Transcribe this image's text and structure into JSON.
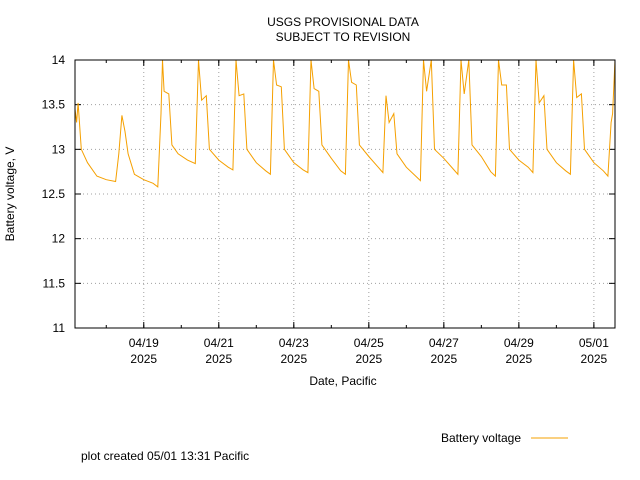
{
  "chart_data": {
    "type": "line",
    "title": [
      "USGS PROVISIONAL DATA",
      "SUBJECT TO REVISION"
    ],
    "xlabel": "Date, Pacific",
    "ylabel": "Battery voltage, V",
    "ylim": [
      11,
      14
    ],
    "xlim": [
      "2025-04-17T04:00",
      "2025-05-01T13:31"
    ],
    "y_ticks": [
      {
        "value": 11,
        "label": "11"
      },
      {
        "value": 11.5,
        "label": "11.5"
      },
      {
        "value": 12,
        "label": "12"
      },
      {
        "value": 12.5,
        "label": "12.5"
      },
      {
        "value": 13,
        "label": "13"
      },
      {
        "value": 13.5,
        "label": "13.5"
      },
      {
        "value": 14,
        "label": "14"
      }
    ],
    "x_major_ticks": [
      {
        "date": "2025-04-19",
        "label": "04/19",
        "year": "2025"
      },
      {
        "date": "2025-04-21",
        "label": "04/21",
        "year": "2025"
      },
      {
        "date": "2025-04-23",
        "label": "04/23",
        "year": "2025"
      },
      {
        "date": "2025-04-25",
        "label": "04/25",
        "year": "2025"
      },
      {
        "date": "2025-04-27",
        "label": "04/27",
        "year": "2025"
      },
      {
        "date": "2025-04-29",
        "label": "04/29",
        "year": "2025"
      },
      {
        "date": "2025-05-01",
        "label": "05/01",
        "year": "2025"
      }
    ],
    "grid": true,
    "legend": "bottom-right",
    "series": [
      {
        "name": "Battery voltage",
        "color": "#f5a000",
        "points": [
          [
            "2025-04-17T04:00",
            13.45
          ],
          [
            "2025-04-17T05:00",
            13.3
          ],
          [
            "2025-04-17T06:00",
            13.52
          ],
          [
            "2025-04-17T08:00",
            13.0
          ],
          [
            "2025-04-17T12:00",
            12.85
          ],
          [
            "2025-04-17T18:00",
            12.7
          ],
          [
            "2025-04-18T00:00",
            12.66
          ],
          [
            "2025-04-18T06:00",
            12.64
          ],
          [
            "2025-04-18T08:00",
            12.95
          ],
          [
            "2025-04-18T10:00",
            13.38
          ],
          [
            "2025-04-18T12:00",
            13.2
          ],
          [
            "2025-04-18T14:00",
            12.95
          ],
          [
            "2025-04-18T18:00",
            12.72
          ],
          [
            "2025-04-19T00:00",
            12.66
          ],
          [
            "2025-04-19T06:00",
            12.62
          ],
          [
            "2025-04-19T09:00",
            12.58
          ],
          [
            "2025-04-19T11:00",
            13.4
          ],
          [
            "2025-04-19T12:00",
            14.0
          ],
          [
            "2025-04-19T13:00",
            13.65
          ],
          [
            "2025-04-19T16:00",
            13.62
          ],
          [
            "2025-04-19T18:00",
            13.05
          ],
          [
            "2025-04-19T22:00",
            12.95
          ],
          [
            "2025-04-20T04:00",
            12.88
          ],
          [
            "2025-04-20T09:00",
            12.84
          ],
          [
            "2025-04-20T11:00",
            14.0
          ],
          [
            "2025-04-20T13:00",
            13.55
          ],
          [
            "2025-04-20T16:00",
            13.6
          ],
          [
            "2025-04-20T18:00",
            13.0
          ],
          [
            "2025-04-21T00:00",
            12.88
          ],
          [
            "2025-04-21T06:00",
            12.8
          ],
          [
            "2025-04-21T09:00",
            12.77
          ],
          [
            "2025-04-21T11:00",
            14.0
          ],
          [
            "2025-04-21T13:00",
            13.6
          ],
          [
            "2025-04-21T16:00",
            13.62
          ],
          [
            "2025-04-21T18:00",
            13.0
          ],
          [
            "2025-04-22T00:00",
            12.85
          ],
          [
            "2025-04-22T06:00",
            12.76
          ],
          [
            "2025-04-22T09:00",
            12.72
          ],
          [
            "2025-04-22T11:00",
            14.0
          ],
          [
            "2025-04-22T13:00",
            13.72
          ],
          [
            "2025-04-22T16:00",
            13.7
          ],
          [
            "2025-04-22T18:00",
            13.0
          ],
          [
            "2025-04-23T00:00",
            12.85
          ],
          [
            "2025-04-23T06:00",
            12.77
          ],
          [
            "2025-04-23T09:00",
            12.74
          ],
          [
            "2025-04-23T11:00",
            14.0
          ],
          [
            "2025-04-23T13:00",
            13.68
          ],
          [
            "2025-04-23T16:00",
            13.65
          ],
          [
            "2025-04-23T18:00",
            13.05
          ],
          [
            "2025-04-24T00:00",
            12.9
          ],
          [
            "2025-04-24T06:00",
            12.76
          ],
          [
            "2025-04-24T09:00",
            12.72
          ],
          [
            "2025-04-24T11:00",
            14.0
          ],
          [
            "2025-04-24T13:00",
            13.75
          ],
          [
            "2025-04-24T16:00",
            13.72
          ],
          [
            "2025-04-24T18:00",
            13.05
          ],
          [
            "2025-04-25T00:00",
            12.92
          ],
          [
            "2025-04-25T06:00",
            12.8
          ],
          [
            "2025-04-25T09:00",
            12.74
          ],
          [
            "2025-04-25T11:00",
            13.6
          ],
          [
            "2025-04-25T13:00",
            13.3
          ],
          [
            "2025-04-25T16:00",
            13.4
          ],
          [
            "2025-04-25T18:00",
            12.95
          ],
          [
            "2025-04-26T00:00",
            12.8
          ],
          [
            "2025-04-26T06:00",
            12.7
          ],
          [
            "2025-04-26T09:00",
            12.65
          ],
          [
            "2025-04-26T11:00",
            14.0
          ],
          [
            "2025-04-26T13:00",
            13.65
          ],
          [
            "2025-04-26T16:00",
            14.0
          ],
          [
            "2025-04-26T18:00",
            13.0
          ],
          [
            "2025-04-27T00:00",
            12.9
          ],
          [
            "2025-04-27T06:00",
            12.78
          ],
          [
            "2025-04-27T09:00",
            12.72
          ],
          [
            "2025-04-27T11:00",
            14.0
          ],
          [
            "2025-04-27T13:00",
            13.62
          ],
          [
            "2025-04-27T16:00",
            14.0
          ],
          [
            "2025-04-27T18:00",
            13.05
          ],
          [
            "2025-04-28T00:00",
            12.92
          ],
          [
            "2025-04-28T06:00",
            12.75
          ],
          [
            "2025-04-28T09:00",
            12.7
          ],
          [
            "2025-04-28T11:00",
            14.0
          ],
          [
            "2025-04-28T13:00",
            13.72
          ],
          [
            "2025-04-28T16:00",
            13.72
          ],
          [
            "2025-04-28T18:00",
            13.0
          ],
          [
            "2025-04-29T00:00",
            12.88
          ],
          [
            "2025-04-29T06:00",
            12.8
          ],
          [
            "2025-04-29T09:00",
            12.74
          ],
          [
            "2025-04-29T11:00",
            14.0
          ],
          [
            "2025-04-29T13:00",
            13.52
          ],
          [
            "2025-04-29T16:00",
            13.6
          ],
          [
            "2025-04-29T18:00",
            13.0
          ],
          [
            "2025-04-30T00:00",
            12.85
          ],
          [
            "2025-04-30T06:00",
            12.76
          ],
          [
            "2025-04-30T09:00",
            12.72
          ],
          [
            "2025-04-30T11:00",
            14.0
          ],
          [
            "2025-04-30T13:00",
            13.58
          ],
          [
            "2025-04-30T16:00",
            13.62
          ],
          [
            "2025-04-30T18:00",
            13.0
          ],
          [
            "2025-05-01T00:00",
            12.85
          ],
          [
            "2025-05-01T06:00",
            12.76
          ],
          [
            "2025-05-01T09:00",
            12.7
          ],
          [
            "2025-05-01T11:00",
            13.3
          ],
          [
            "2025-05-01T12:00",
            13.4
          ],
          [
            "2025-05-01T13:31",
            14.0
          ]
        ]
      }
    ],
    "footnote": "plot created 05/01 13:31 Pacific"
  }
}
